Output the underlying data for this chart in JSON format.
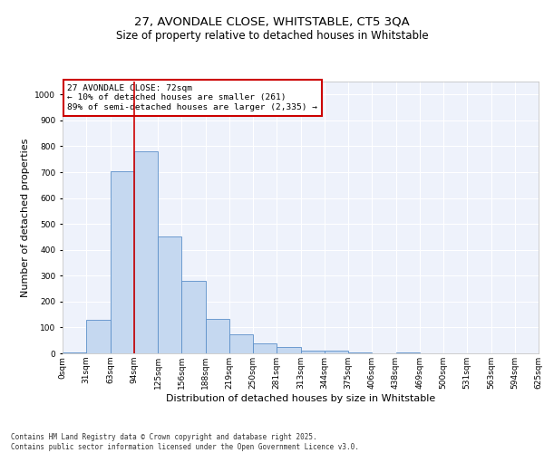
{
  "title_line1": "27, AVONDALE CLOSE, WHITSTABLE, CT5 3QA",
  "title_line2": "Size of property relative to detached houses in Whitstable",
  "xlabel": "Distribution of detached houses by size in Whitstable",
  "ylabel": "Number of detached properties",
  "bar_values": [
    5,
    128,
    703,
    782,
    452,
    279,
    133,
    72,
    40,
    25,
    12,
    10,
    2,
    0,
    5,
    0,
    0,
    0,
    0,
    0
  ],
  "categories": [
    "0sqm",
    "31sqm",
    "63sqm",
    "94sqm",
    "125sqm",
    "156sqm",
    "188sqm",
    "219sqm",
    "250sqm",
    "281sqm",
    "313sqm",
    "344sqm",
    "375sqm",
    "406sqm",
    "438sqm",
    "469sqm",
    "500sqm",
    "531sqm",
    "563sqm",
    "594sqm",
    "625sqm"
  ],
  "bar_color": "#c5d8f0",
  "bar_edge_color": "#5b8fc9",
  "background_color": "#eef2fb",
  "grid_color": "#ffffff",
  "vline_color": "#cc0000",
  "annotation_text": "27 AVONDALE CLOSE: 72sqm\n← 10% of detached houses are smaller (261)\n89% of semi-detached houses are larger (2,335) →",
  "annotation_box_color": "#cc0000",
  "ylim": [
    0,
    1050
  ],
  "yticks": [
    0,
    100,
    200,
    300,
    400,
    500,
    600,
    700,
    800,
    900,
    1000
  ],
  "footnote": "Contains HM Land Registry data © Crown copyright and database right 2025.\nContains public sector information licensed under the Open Government Licence v3.0.",
  "title_fontsize": 9.5,
  "subtitle_fontsize": 8.5,
  "tick_fontsize": 6.5,
  "label_fontsize": 8,
  "footnote_fontsize": 5.5
}
